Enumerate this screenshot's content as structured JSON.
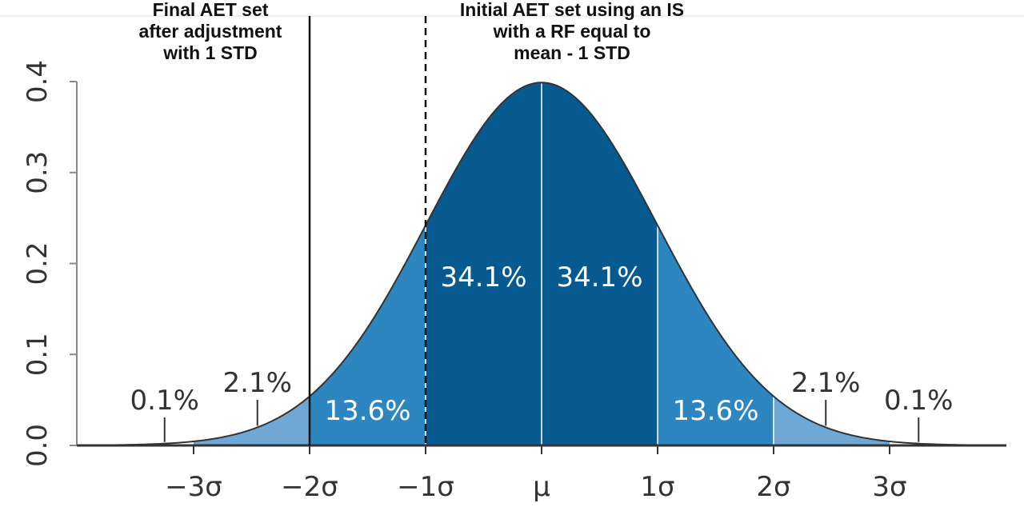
{
  "chart_data": {
    "type": "area",
    "title": "",
    "xlabel": "",
    "ylabel": "",
    "xlim": [
      -4.0,
      4.0
    ],
    "ylim": [
      0.0,
      0.4
    ],
    "grid": false,
    "y_ticks": [
      {
        "value": 0.0,
        "label": "0.0"
      },
      {
        "value": 0.1,
        "label": "0.1"
      },
      {
        "value": 0.2,
        "label": "0.2"
      },
      {
        "value": 0.3,
        "label": "0.3"
      },
      {
        "value": 0.4,
        "label": "0.4"
      }
    ],
    "x_ticks": [
      {
        "value": -3,
        "label": "−3σ"
      },
      {
        "value": -2,
        "label": "−2σ"
      },
      {
        "value": -1,
        "label": "−1σ"
      },
      {
        "value": 0,
        "label": "μ"
      },
      {
        "value": 1,
        "label": "1σ"
      },
      {
        "value": 2,
        "label": "2σ"
      },
      {
        "value": 3,
        "label": "3σ"
      }
    ],
    "regions": [
      {
        "from": -4,
        "to": -3,
        "percent": "0.1%",
        "color": "#ffffff"
      },
      {
        "from": -3,
        "to": -2,
        "percent": "2.1%",
        "color": "#6fa8d4"
      },
      {
        "from": -2,
        "to": -1,
        "percent": "13.6%",
        "color": "#2e86c1"
      },
      {
        "from": -1,
        "to": 0,
        "percent": "34.1%",
        "color": "#075a8f"
      },
      {
        "from": 0,
        "to": 1,
        "percent": "34.1%",
        "color": "#075a8f"
      },
      {
        "from": 1,
        "to": 2,
        "percent": "13.6%",
        "color": "#2e86c1"
      },
      {
        "from": 2,
        "to": 3,
        "percent": "2.1%",
        "color": "#6fa8d4"
      },
      {
        "from": 3,
        "to": 4,
        "percent": "0.1%",
        "color": "#ffffff"
      }
    ],
    "reference_lines": [
      {
        "x": -2,
        "style": "solid",
        "annotation": [
          "Final AET set",
          "after adjustment",
          "with 1 STD"
        ]
      },
      {
        "x": -1,
        "style": "dashed",
        "annotation": [
          "Initial AET set using an IS",
          "with a RF equal to",
          "mean - 1 STD"
        ]
      }
    ]
  }
}
